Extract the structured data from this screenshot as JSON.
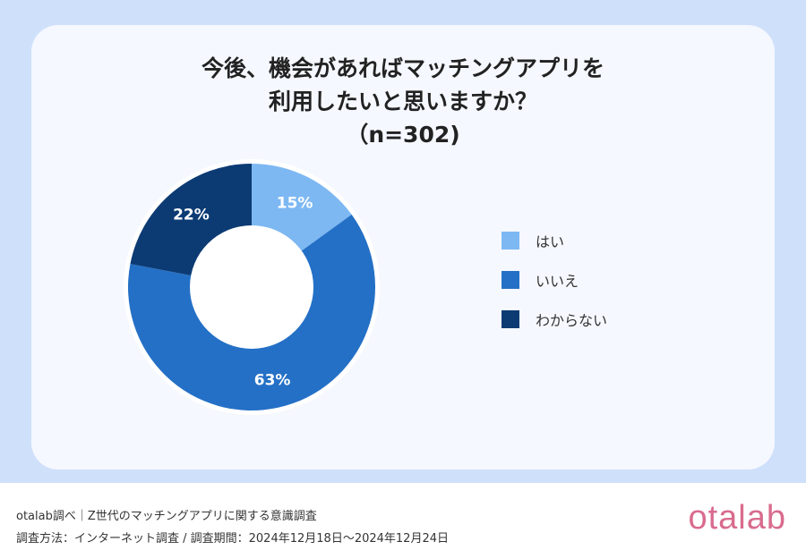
{
  "chart_data": {
    "type": "pie",
    "donut": true,
    "title_lines": [
      "今後、機会があればマッチングアプリを",
      "利用したいと思いますか？",
      "（n=302)"
    ],
    "categories": [
      "はい",
      "いいえ",
      "わからない"
    ],
    "values": [
      15,
      63,
      22
    ],
    "labels": [
      "15%",
      "63%",
      "22%"
    ],
    "colors": [
      "#7db8f3",
      "#2470c6",
      "#0c3b74"
    ],
    "legend": "right"
  },
  "footer": {
    "line1": "otalab調べ｜Z世代のマッチングアプリに関する意識調査",
    "line2": "調査方法：インターネット調査 / 調査期間：2024年12月18日〜2024年12月24日",
    "logo": "otalab"
  }
}
